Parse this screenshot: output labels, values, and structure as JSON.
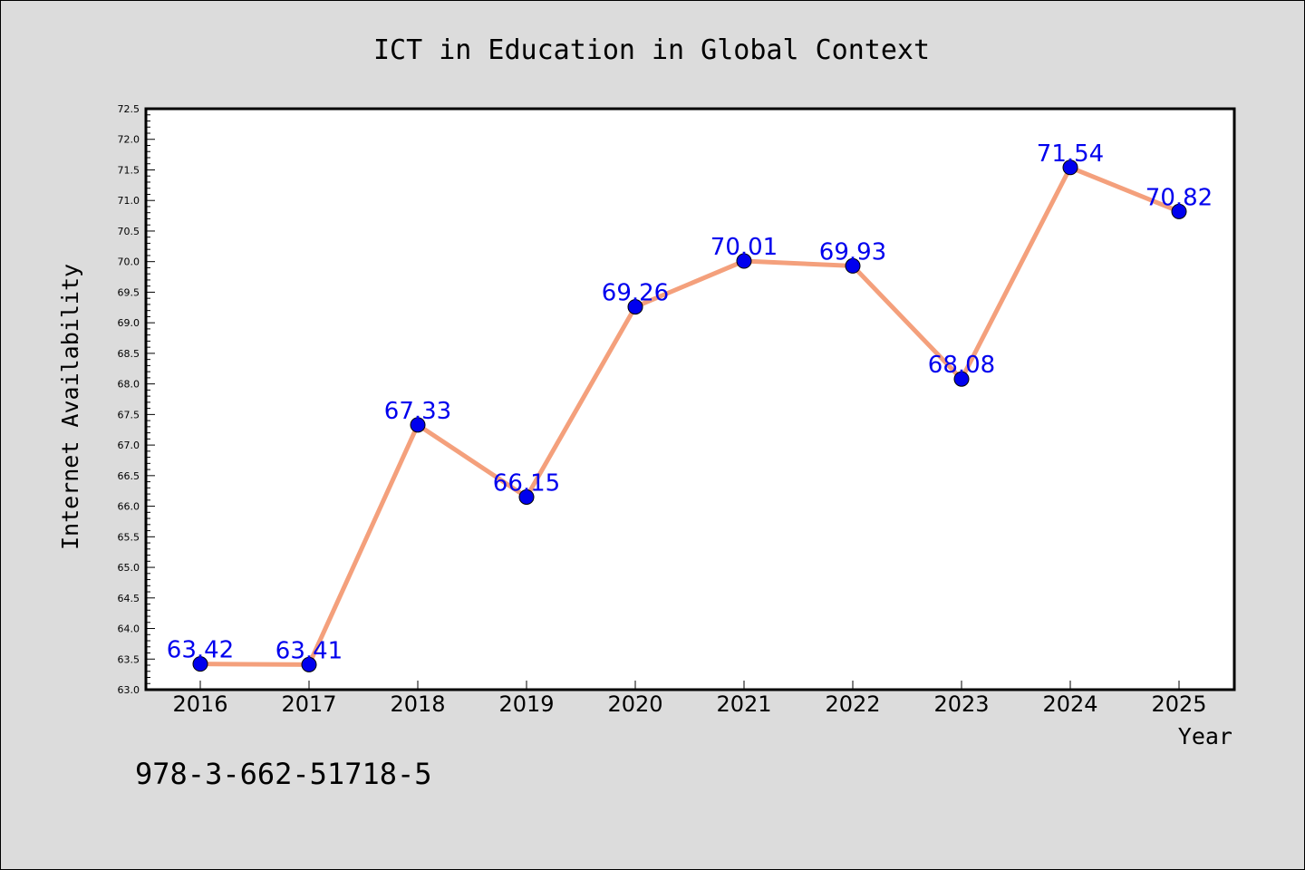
{
  "chart_data": {
    "type": "line",
    "title": "ICT in Education in Global Context",
    "xlabel": "Year",
    "ylabel": "Internet Availability",
    "categories": [
      "2016",
      "2017",
      "2018",
      "2019",
      "2020",
      "2021",
      "2022",
      "2023",
      "2024",
      "2025"
    ],
    "series": [
      {
        "values": [
          63.42,
          63.41,
          67.33,
          66.15,
          69.26,
          70.01,
          69.93,
          68.08,
          71.54,
          70.82
        ]
      }
    ],
    "ylim": [
      63.0,
      72.5
    ],
    "yticks": [
      "63.0",
      "63.5",
      "64.0",
      "64.5",
      "65.0",
      "65.5",
      "66.0",
      "66.5",
      "67.0",
      "67.5",
      "68.0",
      "68.5",
      "69.0",
      "69.5",
      "70.0",
      "70.5",
      "71.0",
      "71.5",
      "72.0",
      "72.5"
    ],
    "data_labels": [
      "63.42",
      "63.41",
      "67.33",
      "66.15",
      "69.26",
      "70.01",
      "69.93",
      "68.08",
      "71.54",
      "70.82"
    ],
    "grid": false,
    "legend": "none",
    "colors": {
      "line": "#f4a07c",
      "marker": "#0000ee",
      "label": "#0000ee",
      "plot_background": "#ffffff",
      "figure_background": "#dcdcdc"
    }
  },
  "footer": {
    "isbn": "978-3-662-51718-5"
  }
}
